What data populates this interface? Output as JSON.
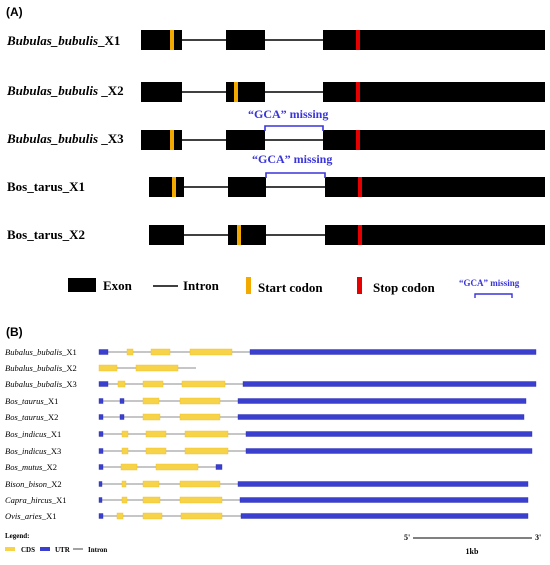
{
  "colors": {
    "exon": "#000000",
    "intron": "#000000",
    "start_codon": "#f2a900",
    "stop_codon": "#e60000",
    "gca_bracket": "#3a35d8",
    "cds_fill": "#f7d34a",
    "cds_edge": "#f0c020",
    "utr_fill": "#3a3fcf",
    "utr_edge": "#2a2fb0",
    "intron_b": "#666666"
  },
  "panel_a": {
    "label": "(A)",
    "transcripts": [
      {
        "name": "Bubulas_bubulis_X1",
        "italic_part": "Bubulas_bubulis",
        "suffix": "_X1"
      },
      {
        "name": "Bubulas_bubulis _X2",
        "italic_part": "Bubulas_bubulis",
        "suffix": " _X2"
      },
      {
        "name": "Bubulas_bubulis _X3",
        "italic_part": "Bubulas_bubulis",
        "suffix": " _X3"
      },
      {
        "name": "Bos_tarus_X1",
        "italic_part": "",
        "suffix": "Bos_tarus_X1"
      },
      {
        "name": "Bos_tarus_X2",
        "italic_part": "",
        "suffix": "Bos_tarus_X2"
      }
    ],
    "gca_annotation": "“GCA” missing",
    "legend": {
      "exon": "Exon",
      "intron": "Intron",
      "start_codon": "Start codon",
      "stop_codon": "Stop codon",
      "gca_missing": "“GCA” missing"
    }
  },
  "panel_b": {
    "label": "(B)",
    "transcripts": [
      {
        "italic": "Bubalus_bubalis",
        "suffix": "_X1"
      },
      {
        "italic": "Bubalus_bubalis",
        "suffix": "_X2"
      },
      {
        "italic": "Bubalus_bubalis",
        "suffix": "_X3"
      },
      {
        "italic": "Bos_taurus",
        "suffix": "_X1"
      },
      {
        "italic": "Bos_taurus",
        "suffix": "_X2"
      },
      {
        "italic": "Bos_indicus",
        "suffix": "_X1"
      },
      {
        "italic": "Bos_indicus",
        "suffix": "_X3"
      },
      {
        "italic": "Bos_mutus",
        "suffix": "_X2"
      },
      {
        "italic": "Bison_bison",
        "suffix": "_X2"
      },
      {
        "italic": "Capra_hircus",
        "suffix": "_X1"
      },
      {
        "italic": "Ovis_aries",
        "suffix": "_X1"
      }
    ],
    "legend": {
      "title": "Legend:",
      "cds": "CDS",
      "utr": "UTR",
      "intron": "Intron"
    },
    "scale": {
      "five_prime": "5'",
      "three_prime": "3'",
      "length": "1kb"
    }
  }
}
